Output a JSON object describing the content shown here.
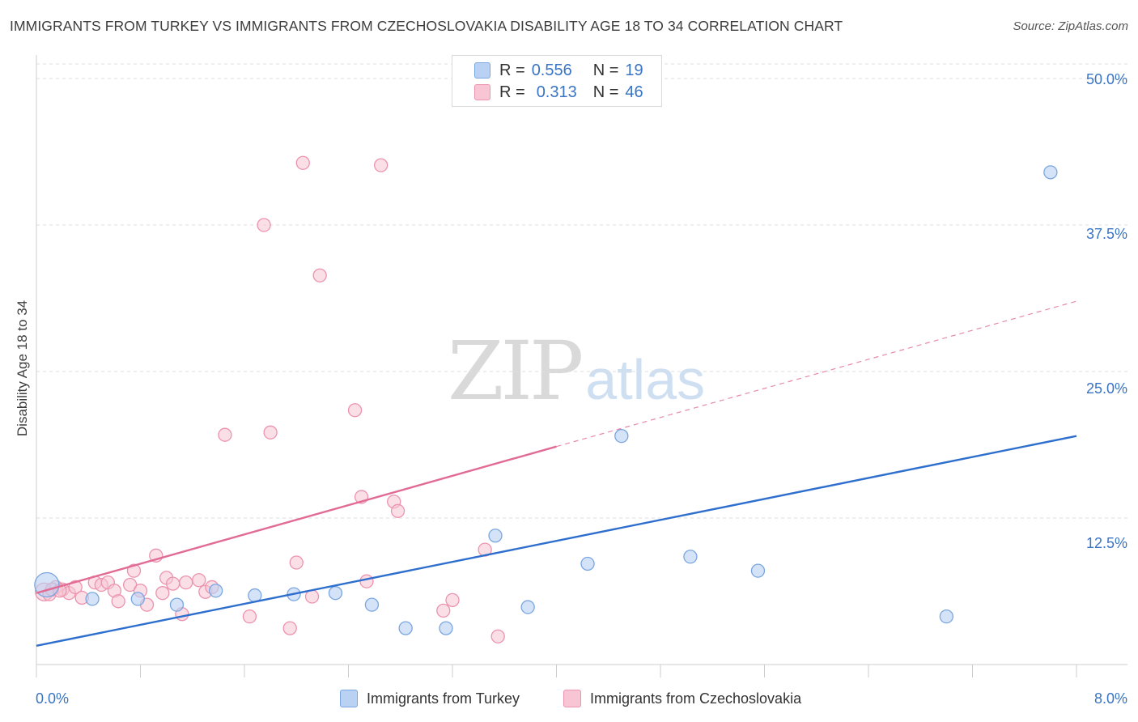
{
  "title": "IMMIGRANTS FROM TURKEY VS IMMIGRANTS FROM CZECHOSLOVAKIA DISABILITY AGE 18 TO 34 CORRELATION CHART",
  "source": "Source: ZipAtlas.com",
  "watermark": {
    "zip": "ZIP",
    "atlas": "atlas"
  },
  "legend_top": {
    "turkey": {
      "r_label": "R = ",
      "r_value": "0.556",
      "n_label": "N = ",
      "n_value": "19"
    },
    "czech": {
      "r_label": "R = ",
      "r_value": "0.313",
      "n_label": "N = ",
      "n_value": "46"
    }
  },
  "colors": {
    "turkey_fill": "#b9d1f3",
    "turkey_stroke": "#7aa6e0",
    "turkey_line": "#2e6fce",
    "czech_fill": "#f7c5d4",
    "czech_stroke": "#ec93ae",
    "czech_line": "#e26b96",
    "grid": "#dedede",
    "axis_text": "#3a74c4"
  },
  "chart_data": {
    "type": "scatter",
    "title": "IMMIGRANTS FROM TURKEY VS IMMIGRANTS FROM CZECHOSLOVAKIA DISABILITY AGE 18 TO 34 CORRELATION CHART",
    "xlabel": "",
    "ylabel": "Disability Age 18 to 34",
    "xlim": [
      0,
      8
    ],
    "ylim": [
      0,
      50
    ],
    "x_tick_labels": [
      "0.0%",
      "8.0%"
    ],
    "y_tick_labels": [
      "12.5%",
      "25.0%",
      "37.5%",
      "50.0%"
    ],
    "y_ticks": [
      12.5,
      25.0,
      37.5,
      50.0
    ],
    "grid": true,
    "series": [
      {
        "name": "Immigrants from Turkey",
        "R": 0.556,
        "N": 19,
        "points": [
          [
            0.08,
            6.8
          ],
          [
            0.43,
            5.6
          ],
          [
            0.78,
            5.6
          ],
          [
            1.08,
            5.1
          ],
          [
            1.38,
            6.3
          ],
          [
            1.68,
            5.9
          ],
          [
            1.98,
            6.0
          ],
          [
            2.3,
            6.1
          ],
          [
            2.58,
            5.1
          ],
          [
            2.84,
            3.1
          ],
          [
            3.15,
            3.1
          ],
          [
            3.53,
            11.0
          ],
          [
            3.78,
            4.9
          ],
          [
            4.24,
            8.6
          ],
          [
            4.5,
            19.5
          ],
          [
            5.03,
            9.2
          ],
          [
            5.55,
            8.0
          ],
          [
            7.0,
            4.1
          ],
          [
            7.8,
            42.0
          ]
        ],
        "trend": {
          "x": [
            0,
            8
          ],
          "y": [
            1.6,
            19.5
          ],
          "dashed_extension": false
        }
      },
      {
        "name": "Immigrants from Czechoslovakia",
        "R": 0.313,
        "N": 46,
        "points": [
          [
            0.06,
            6.2
          ],
          [
            0.15,
            6.6
          ],
          [
            0.2,
            6.4
          ],
          [
            0.25,
            6.1
          ],
          [
            0.3,
            6.6
          ],
          [
            0.35,
            5.7
          ],
          [
            0.45,
            7.0
          ],
          [
            0.5,
            6.8
          ],
          [
            0.55,
            7.0
          ],
          [
            0.6,
            6.3
          ],
          [
            0.63,
            5.4
          ],
          [
            0.72,
            6.8
          ],
          [
            0.75,
            8.0
          ],
          [
            0.8,
            6.3
          ],
          [
            0.85,
            5.1
          ],
          [
            0.92,
            9.3
          ],
          [
            0.97,
            6.1
          ],
          [
            1.0,
            7.4
          ],
          [
            1.05,
            6.9
          ],
          [
            1.12,
            4.3
          ],
          [
            1.15,
            7.0
          ],
          [
            1.25,
            7.2
          ],
          [
            1.3,
            6.2
          ],
          [
            1.35,
            6.6
          ],
          [
            1.45,
            19.6
          ],
          [
            1.64,
            4.1
          ],
          [
            1.75,
            37.5
          ],
          [
            1.8,
            19.8
          ],
          [
            1.95,
            3.1
          ],
          [
            2.0,
            8.7
          ],
          [
            2.05,
            42.8
          ],
          [
            2.12,
            5.8
          ],
          [
            2.18,
            33.2
          ],
          [
            2.45,
            21.7
          ],
          [
            2.5,
            14.3
          ],
          [
            2.54,
            7.1
          ],
          [
            2.65,
            42.6
          ],
          [
            2.75,
            13.9
          ],
          [
            2.78,
            13.1
          ],
          [
            3.13,
            4.6
          ],
          [
            3.2,
            5.5
          ],
          [
            3.45,
            9.8
          ],
          [
            3.55,
            2.4
          ],
          [
            0.1,
            6.0
          ],
          [
            0.12,
            6.4
          ],
          [
            0.18,
            6.3
          ]
        ],
        "trend": {
          "x": [
            0,
            4
          ],
          "y": [
            6.1,
            18.6
          ],
          "dashed_extension": {
            "x": [
              4,
              8
            ],
            "y": [
              18.6,
              31.0
            ]
          }
        }
      }
    ],
    "legend": "top-center"
  }
}
